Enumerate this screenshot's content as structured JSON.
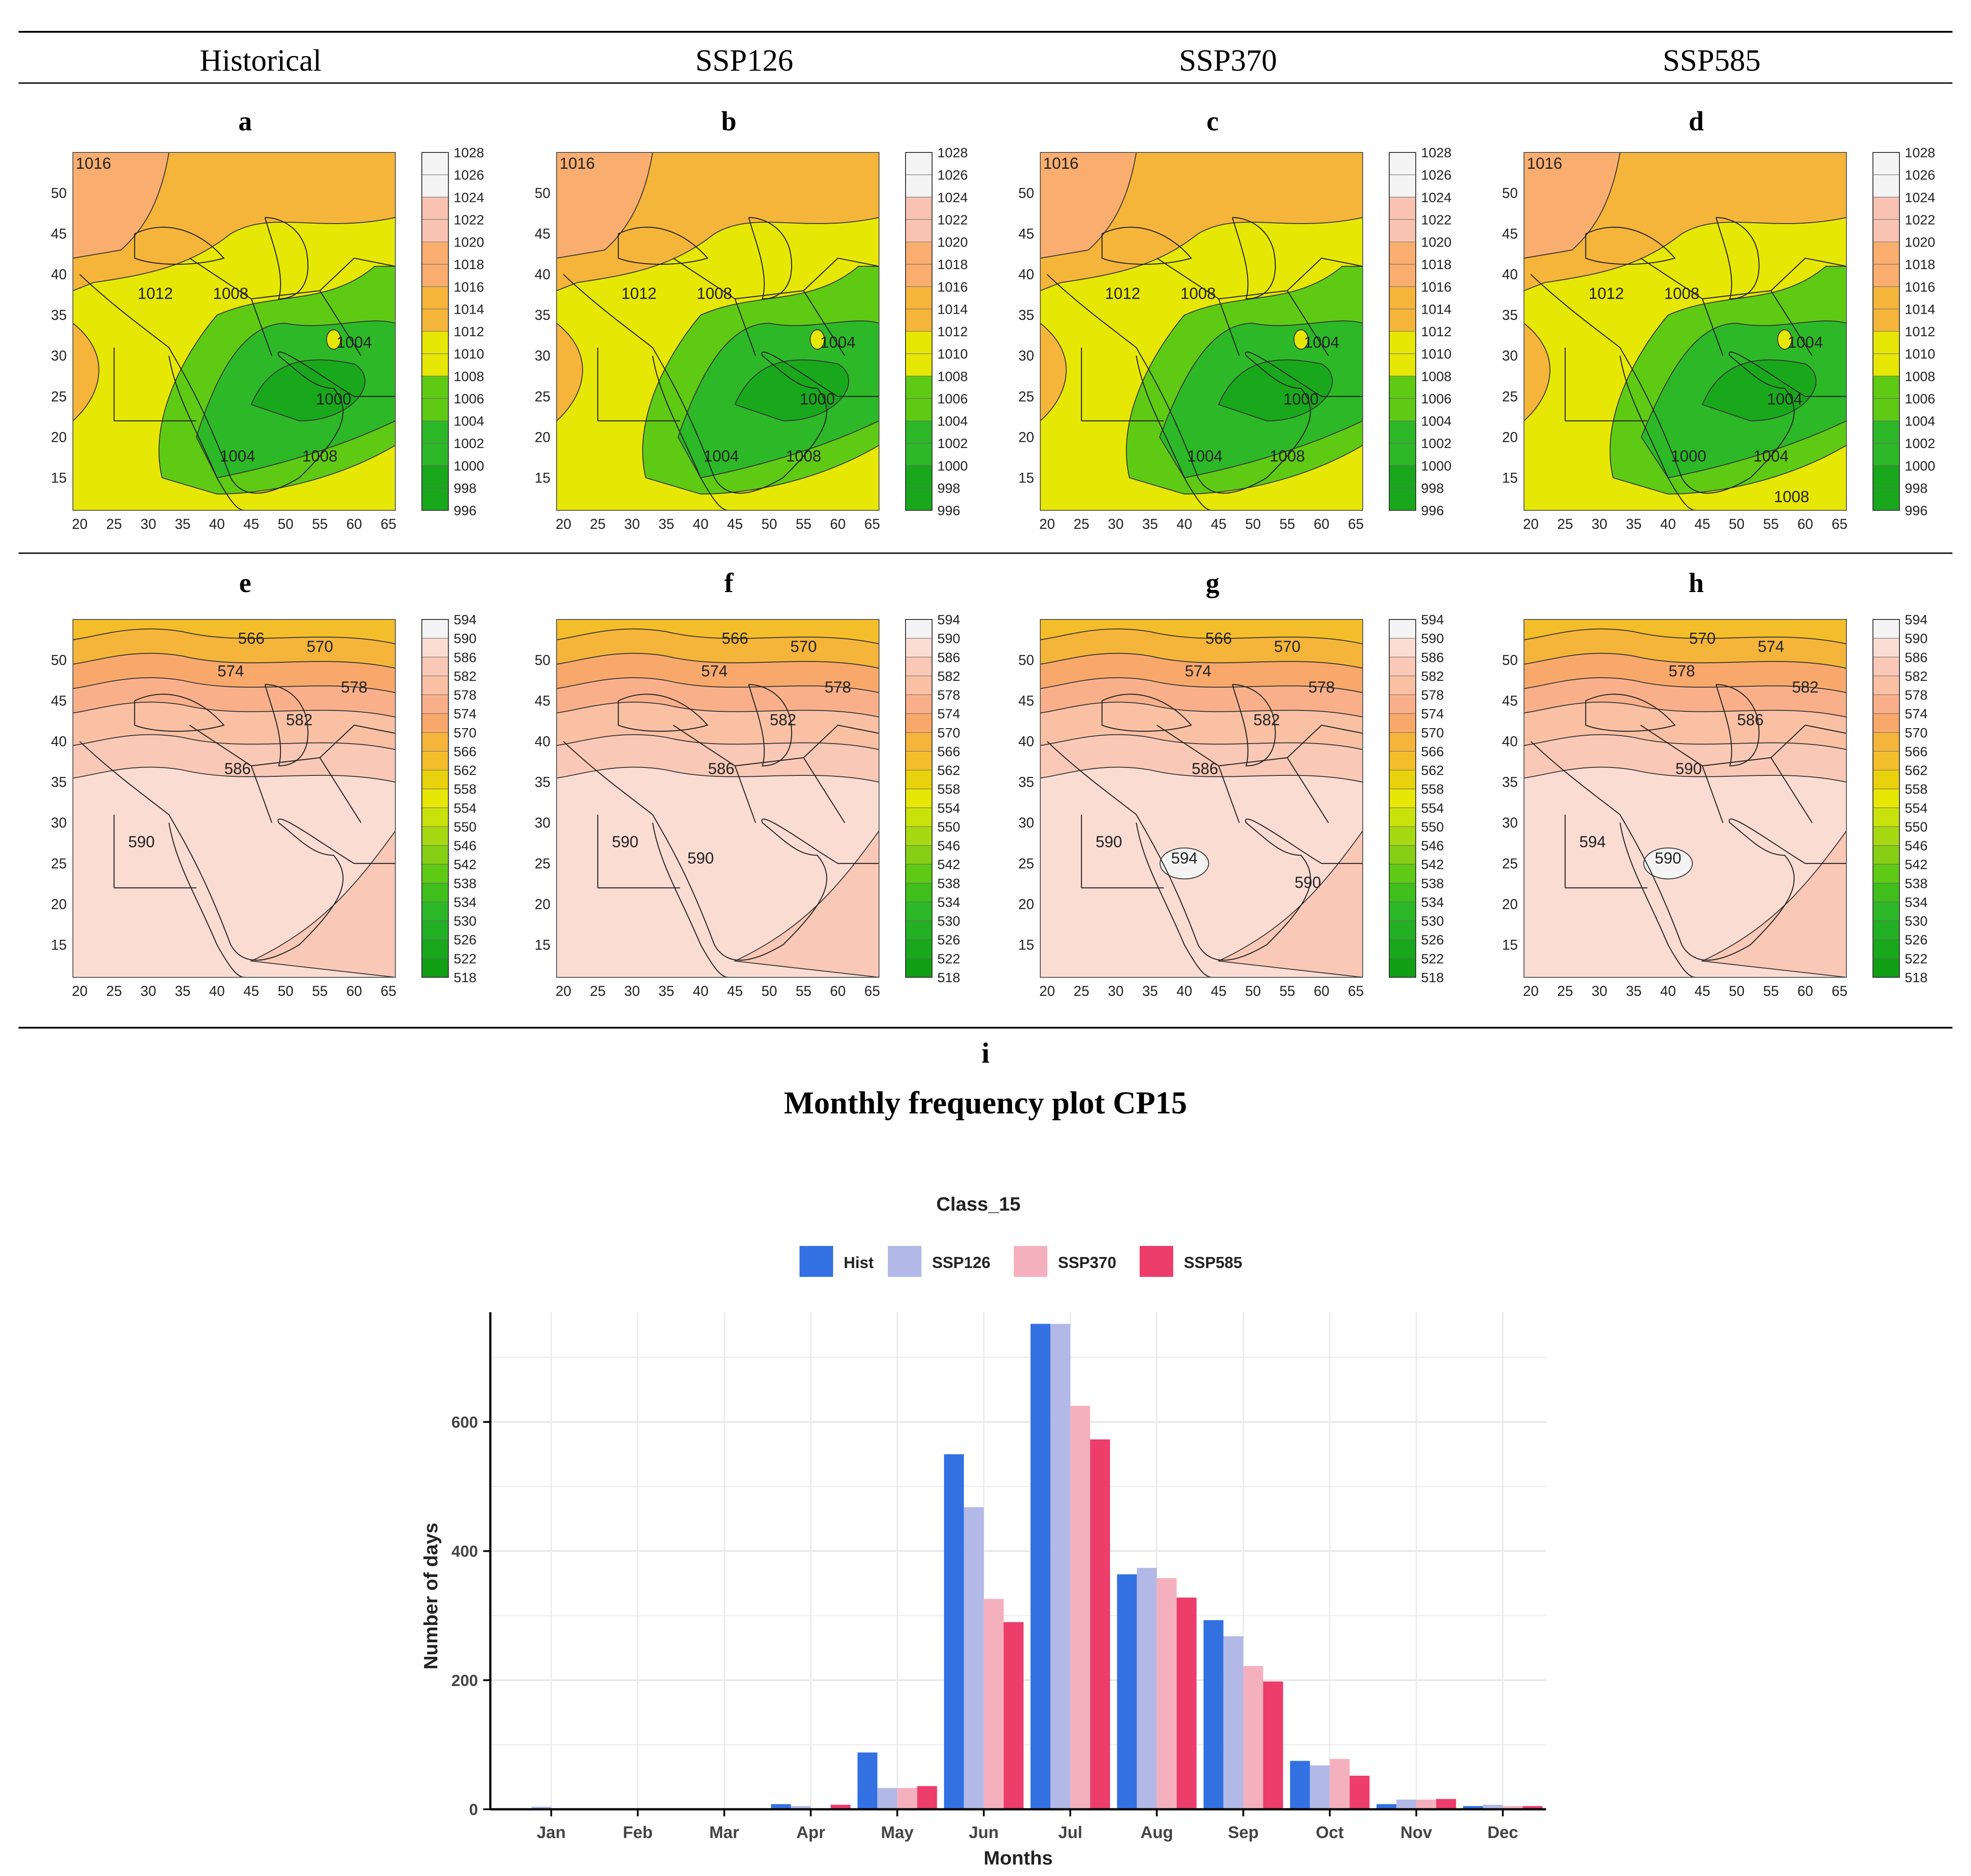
{
  "header": {
    "columns": [
      "Historical",
      "SSP126",
      "SSP370",
      "SSP585"
    ]
  },
  "slp_scale": {
    "labels": [
      "1028",
      "1026",
      "1024",
      "1022",
      "1020",
      "1018",
      "1016",
      "1014",
      "1012",
      "1010",
      "1008",
      "1006",
      "1004",
      "1002",
      "1000",
      "998",
      "996"
    ],
    "colors": [
      "#f4f4f4",
      "#f4f4f4",
      "#f9c3b2",
      "#f9c3b2",
      "#f9ae6f",
      "#f9ae6f",
      "#f5b53a",
      "#f5b53a",
      "#e7e705",
      "#e7e705",
      "#5fca14",
      "#5fca14",
      "#2db828",
      "#2db828",
      "#19a81c",
      "#19a81c"
    ]
  },
  "gph_scale": {
    "labels": [
      "594",
      "590",
      "586",
      "582",
      "578",
      "574",
      "570",
      "566",
      "562",
      "558",
      "554",
      "550",
      "546",
      "542",
      "538",
      "534",
      "530",
      "526",
      "522",
      "518"
    ],
    "colors": [
      "#f4f4f4",
      "#fbdcd3",
      "#f9c8b6",
      "#f9c0a4",
      "#f9b08a",
      "#f9a86c",
      "#f5b53a",
      "#f4be2a",
      "#e8d20b",
      "#e7e705",
      "#c9e20c",
      "#a7d912",
      "#86cf15",
      "#5fca14",
      "#3fbe1c",
      "#2db828",
      "#22b024",
      "#19a81c",
      "#119f16"
    ]
  },
  "panels": [
    {
      "letter": "a",
      "scenario": "Historical",
      "field": "slp",
      "contours": [
        "1016",
        "1012",
        "1008",
        "1004",
        "1000",
        "1004",
        "1008"
      ]
    },
    {
      "letter": "b",
      "scenario": "SSP126",
      "field": "slp",
      "contours": [
        "1016",
        "1012",
        "1008",
        "1004",
        "1000",
        "1004",
        "1008"
      ]
    },
    {
      "letter": "c",
      "scenario": "SSP370",
      "field": "slp",
      "contours": [
        "1016",
        "1012",
        "1008",
        "1004",
        "1000",
        "1004",
        "1008"
      ]
    },
    {
      "letter": "d",
      "scenario": "SSP585",
      "field": "slp",
      "contours": [
        "1016",
        "1012",
        "1008",
        "1004",
        "1004",
        "1000",
        "1004",
        "1008"
      ]
    },
    {
      "letter": "e",
      "scenario": "Historical",
      "field": "gph",
      "contours": [
        "566",
        "570",
        "574",
        "578",
        "582",
        "586",
        "590"
      ]
    },
    {
      "letter": "f",
      "scenario": "SSP126",
      "field": "gph",
      "contours": [
        "566",
        "570",
        "574",
        "578",
        "582",
        "586",
        "590",
        "590"
      ]
    },
    {
      "letter": "g",
      "scenario": "SSP370",
      "field": "gph",
      "contours": [
        "566",
        "570",
        "574",
        "578",
        "582",
        "586",
        "590",
        "594",
        "590"
      ]
    },
    {
      "letter": "h",
      "scenario": "SSP585",
      "field": "gph",
      "contours": [
        "570",
        "574",
        "578",
        "582",
        "586",
        "590",
        "594",
        "590"
      ]
    }
  ],
  "map_axes": {
    "x_ticks": [
      "20",
      "25",
      "30",
      "35",
      "40",
      "45",
      "50",
      "55",
      "60",
      "65"
    ],
    "y_ticks": [
      "50",
      "45",
      "40",
      "35",
      "30",
      "25",
      "20",
      "15"
    ],
    "x_range": [
      19,
      66
    ],
    "y_range": [
      11,
      55
    ]
  },
  "section_i": {
    "letter": "i",
    "heading": "Monthly frequency plot CP15"
  },
  "chart_data": {
    "type": "bar",
    "title": "Class_15",
    "xlabel": "Months",
    "ylabel": "Number of days",
    "categories": [
      "Jan",
      "Feb",
      "Mar",
      "Apr",
      "May",
      "Jun",
      "Jul",
      "Aug",
      "Sep",
      "Oct",
      "Nov",
      "Dec"
    ],
    "ylim": [
      0,
      770
    ],
    "yticks": [
      0,
      200,
      400,
      600
    ],
    "series": [
      {
        "name": "Hist",
        "color": "#3371e3",
        "values": [
          0,
          0,
          0,
          8,
          88,
          550,
          752,
          364,
          293,
          75,
          8,
          5
        ]
      },
      {
        "name": "SSP126",
        "color": "#b2b9e6",
        "values": [
          4,
          0,
          0,
          5,
          33,
          468,
          752,
          374,
          268,
          68,
          15,
          7
        ]
      },
      {
        "name": "SSP370",
        "color": "#f5b0be",
        "values": [
          0,
          0,
          0,
          0,
          33,
          326,
          625,
          358,
          222,
          78,
          15,
          5
        ]
      },
      {
        "name": "SSP585",
        "color": "#ec3d6b",
        "values": [
          0,
          0,
          0,
          7,
          36,
          290,
          573,
          328,
          198,
          52,
          16,
          5
        ]
      }
    ],
    "legend_position": "top"
  }
}
